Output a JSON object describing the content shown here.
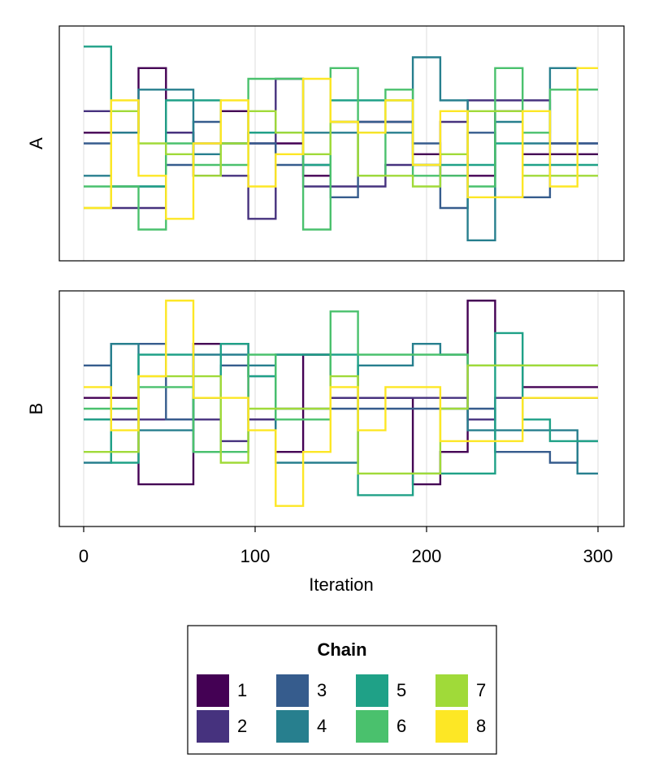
{
  "chart_data": {
    "type": "line",
    "style": "step",
    "xlabel": "Iteration",
    "xlim": [
      0,
      300
    ],
    "xticks": [
      0,
      100,
      200,
      300
    ],
    "x_grid": true,
    "legend": {
      "title": "Chain",
      "placement": "bottom-center",
      "entries": [
        "1",
        "2",
        "3",
        "4",
        "5",
        "6",
        "7",
        "8"
      ]
    },
    "step_edges": [
      0,
      16,
      32,
      48,
      64,
      80,
      96,
      112,
      128,
      144,
      160,
      176,
      192,
      208,
      224,
      240,
      256,
      272,
      288,
      300
    ],
    "colors": {
      "1": "#440154",
      "2": "#46327e",
      "3": "#365c8d",
      "4": "#277f8e",
      "5": "#1fa187",
      "6": "#4ac16d",
      "7": "#a0da39",
      "8": "#fde725"
    },
    "panels": [
      {
        "ylabel": "A",
        "ylim": [
          0,
          20
        ],
        "series": [
          {
            "name": "1",
            "values": [
              11,
              11,
              17,
              11,
              7,
              13,
              10,
              10,
              7,
              12,
              12,
              12,
              9,
              7,
              7,
              13,
              9,
              9,
              9,
              9
            ]
          },
          {
            "name": "2",
            "values": [
              13,
              4,
              4,
              11,
              10,
              7,
              3,
              16,
              6,
              6,
              6,
              8,
              8,
              12,
              14,
              14,
              14,
              10,
              10,
              10
            ]
          },
          {
            "name": "3",
            "values": [
              10,
              6,
              6,
              8,
              12,
              10,
              10,
              8,
              8,
              5,
              12,
              12,
              10,
              4,
              11,
              5,
              5,
              10,
              10,
              10
            ]
          },
          {
            "name": "4",
            "values": [
              7,
              11,
              15,
              15,
              9,
              10,
              11,
              11,
              11,
              11,
              11,
              11,
              18,
              14,
              1,
              12,
              10,
              17,
              15,
              15
            ]
          },
          {
            "name": "5",
            "values": [
              19,
              6,
              6,
              14,
              14,
              10,
              11,
              11,
              8,
              14,
              14,
              14,
              8,
              8,
              8,
              10,
              8,
              8,
              8,
              8
            ]
          },
          {
            "name": "6",
            "values": [
              6,
              6,
              2,
              10,
              8,
              8,
              16,
              16,
              2,
              17,
              7,
              15,
              7,
              7,
              6,
              17,
              11,
              15,
              15,
              15
            ]
          },
          {
            "name": "7",
            "values": [
              4,
              13,
              10,
              9,
              7,
              10,
              13,
              11,
              9,
              12,
              7,
              7,
              6,
              9,
              13,
              13,
              7,
              7,
              7,
              7
            ]
          },
          {
            "name": "8",
            "values": [
              4,
              14,
              7,
              3,
              10,
              14,
              6,
              9,
              16,
              12,
              11,
              14,
              8,
              13,
              5,
              5,
              13,
              6,
              17,
              17
            ]
          }
        ]
      },
      {
        "ylabel": "B",
        "ylim": [
          0,
          20
        ],
        "series": [
          {
            "name": "1",
            "values": [
              11,
              11,
              3,
              3,
              16,
              16,
              9,
              6,
              15,
              11,
              11,
              11,
              3,
              6,
              20,
              14,
              12,
              12,
              12,
              12
            ]
          },
          {
            "name": "2",
            "values": [
              9,
              9,
              9,
              9,
              9,
              7,
              9,
              15,
              15,
              11,
              11,
              11,
              11,
              11,
              9,
              11,
              11,
              11,
              11,
              11
            ]
          },
          {
            "name": "3",
            "values": [
              14,
              16,
              16,
              9,
              11,
              14,
              13,
              10,
              10,
              10,
              10,
              10,
              10,
              10,
              10,
              6,
              6,
              5,
              7,
              7
            ]
          },
          {
            "name": "4",
            "values": [
              5,
              16,
              8,
              8,
              15,
              15,
              14,
              5,
              5,
              5,
              14,
              14,
              16,
              15,
              8,
              8,
              8,
              8,
              4,
              4
            ]
          },
          {
            "name": "5",
            "values": [
              9,
              5,
              15,
              15,
              6,
              16,
              13,
              15,
              15,
              15,
              2,
              2,
              4,
              4,
              4,
              17,
              9,
              7,
              7,
              7
            ]
          },
          {
            "name": "6",
            "values": [
              10,
              10,
              12,
              12,
              6,
              6,
              15,
              9,
              9,
              19,
              15,
              15,
              15,
              15,
              14,
              14,
              14,
              14,
              14,
              14
            ]
          },
          {
            "name": "7",
            "values": [
              6,
              6,
              13,
              13,
              13,
              5,
              10,
              10,
              10,
              13,
              4,
              4,
              4,
              10,
              14,
              14,
              14,
              14,
              14,
              14
            ]
          },
          {
            "name": "8",
            "values": [
              12,
              8,
              13,
              20,
              11,
              11,
              8,
              1,
              6,
              12,
              8,
              12,
              12,
              7,
              7,
              7,
              11,
              11,
              11,
              11
            ]
          }
        ]
      }
    ]
  }
}
